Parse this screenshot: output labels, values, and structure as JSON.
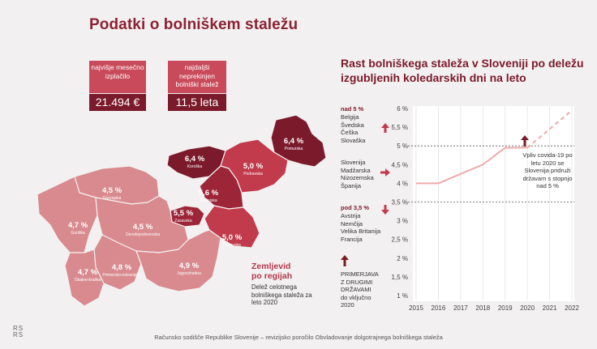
{
  "title": "Podatki o bolniškem staležu",
  "kpis": [
    {
      "label": "najvišje mesečno izplačilo",
      "value": "21.494 €"
    },
    {
      "label": "najdaljši neprekinjen bolniški stalež",
      "value": "11,5 leta"
    }
  ],
  "map": {
    "label_line1": "Zemljevid",
    "label_line2": "po regijah",
    "description": "Delež celotnega bolniškega staleža za leto 2020",
    "regions": [
      {
        "name": "Pomurska",
        "value": "6,4 %",
        "color": "#7a1a2a"
      },
      {
        "name": "Koroška",
        "value": "6,4 %",
        "color": "#7a1a2a"
      },
      {
        "name": "Podravska",
        "value": "5,0 %",
        "color": "#c13b4c"
      },
      {
        "name": "Savinjska",
        "value": "5,6 %",
        "color": "#9c2538"
      },
      {
        "name": "Zasavska",
        "value": "5,5 %",
        "color": "#9c2538"
      },
      {
        "name": "Posavska",
        "value": "5,0 %",
        "color": "#c13b4c"
      },
      {
        "name": "Gorenjska",
        "value": "4,5 %",
        "color": "#d98a8e"
      },
      {
        "name": "Goriška",
        "value": "4,7 %",
        "color": "#d98a8e"
      },
      {
        "name": "Osrednjeslovenska",
        "value": "4,5 %",
        "color": "#d98a8e"
      },
      {
        "name": "Primorsko-notranjska",
        "value": "4,8 %",
        "color": "#d98a8e"
      },
      {
        "name": "Obalno-kraška",
        "value": "4,7 %",
        "color": "#d98a8e"
      },
      {
        "name": "Jugovzhodna",
        "value": "4,9 %",
        "color": "#d98a8e"
      }
    ]
  },
  "comparison": {
    "groups": [
      {
        "head": "nad 5 %",
        "items": [
          "Belgija",
          "Švedska",
          "Češka",
          "Slovaška"
        ],
        "arrow": "up"
      },
      {
        "head": "",
        "items": [
          "Slovenija",
          "Madžarska",
          "Nizozemska",
          "Španija"
        ],
        "arrow": "right"
      },
      {
        "head": "pod 3,5 %",
        "items": [
          "Avstrija",
          "Nemčija",
          "Velika Britanija",
          "Francija"
        ],
        "arrow": "down"
      }
    ],
    "note": [
      "PRIMERJAVA",
      "Z DRUGIMI",
      "DRŽAVAMI",
      "do vključno",
      "2020"
    ]
  },
  "chart_data": {
    "type": "line",
    "title": "Rast bolniškega staleža v Sloveniji po deležu izgubljenih koledarskih dni na leto",
    "x": [
      2015,
      2016,
      2017,
      2018,
      2019,
      2020,
      2021,
      2022
    ],
    "x_ticks": [
      "2015",
      "2016",
      "2017",
      "2018",
      "2019",
      "2020",
      "2021",
      "2022"
    ],
    "y_ticks": [
      "1 %",
      "1,5 %",
      "2 %",
      "2,5 %",
      "3 %",
      "3,5 %",
      "4 %",
      "4,5 %",
      "5 %",
      "5,5 %",
      "6 %"
    ],
    "ylim": [
      1,
      6
    ],
    "series": [
      {
        "values": [
          4.0,
          4.0,
          4.25,
          4.5,
          4.95,
          4.95
        ],
        "x": [
          2015,
          2016,
          2017,
          2018,
          2019,
          2020
        ],
        "style": "solid",
        "color": "#f0a9aa"
      },
      {
        "values": [
          4.95,
          5.45,
          5.95
        ],
        "x": [
          2020,
          2021,
          2022
        ],
        "style": "dashed",
        "color": "#f0a9aa"
      }
    ],
    "reference_lines": [
      5,
      3.5
    ],
    "annotation": "Vpliv covida-19 po letu 2020 se Slovenija pridruži državam s stopnjo nad 5 %"
  },
  "footer": "Računsko sodišče Republike Slovenije – revizijsko poročilo Obvladovanje dolgotrajnega bolniškega staleža",
  "logo": [
    "RS",
    "RS"
  ],
  "colors": {
    "accent": "#8c2232",
    "dark": "#7a1a2a",
    "light": "#d98a8e",
    "line": "#f0a9aa"
  }
}
